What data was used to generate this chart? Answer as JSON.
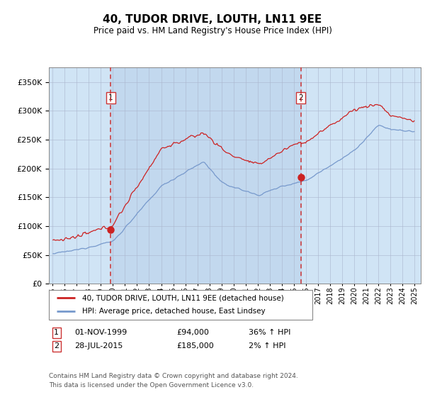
{
  "title": "40, TUDOR DRIVE, LOUTH, LN11 9EE",
  "subtitle": "Price paid vs. HM Land Registry's House Price Index (HPI)",
  "ytick_values": [
    0,
    50000,
    100000,
    150000,
    200000,
    250000,
    300000,
    350000
  ],
  "ylim": [
    0,
    375000
  ],
  "xlim_start": 1994.7,
  "xlim_end": 2025.5,
  "sale1_year": 1999.833,
  "sale1_price": 94000,
  "sale2_year": 2015.567,
  "sale2_price": 185000,
  "legend_line1": "40, TUDOR DRIVE, LOUTH, LN11 9EE (detached house)",
  "legend_line2": "HPI: Average price, detached house, East Lindsey",
  "table_row1": [
    "1",
    "01-NOV-1999",
    "£94,000",
    "36% ↑ HPI"
  ],
  "table_row2": [
    "2",
    "28-JUL-2015",
    "£185,000",
    "2% ↑ HPI"
  ],
  "footer": "Contains HM Land Registry data © Crown copyright and database right 2024.\nThis data is licensed under the Open Government Licence v3.0.",
  "hpi_color": "#7799cc",
  "property_color": "#cc2222",
  "sale_marker_color": "#cc2222",
  "dashed_line_color": "#cc3333",
  "shade_color": "#d0e4f5"
}
